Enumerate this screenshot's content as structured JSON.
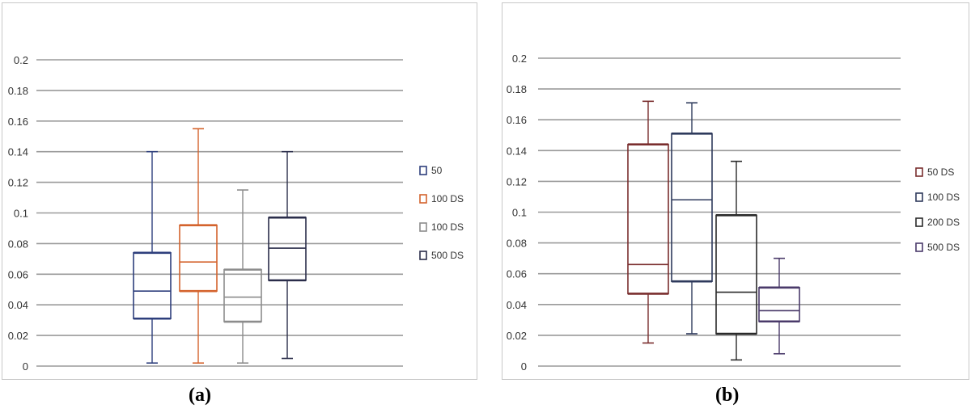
{
  "figure": {
    "panels": [
      {
        "caption": "(a)"
      },
      {
        "caption": "(b)"
      }
    ]
  },
  "chart_data": [
    {
      "type": "box",
      "title": "",
      "xlabel": "",
      "ylabel": "",
      "ylim": [
        0,
        0.2
      ],
      "y_ticks": [
        "0",
        "0.02",
        "0.04",
        "0.06",
        "0.08",
        "0.1",
        "0.12",
        "0.14",
        "0.16",
        "0.18",
        "0.2"
      ],
      "grid": true,
      "legend": "right",
      "series": [
        {
          "name": "50",
          "color": "#2e3f7c",
          "min": 0.002,
          "q1": 0.031,
          "median": 0.049,
          "q3": 0.074,
          "max": 0.14
        },
        {
          "name": "100 DS",
          "color": "#d4632d",
          "min": 0.002,
          "q1": 0.049,
          "median": 0.068,
          "q3": 0.092,
          "max": 0.155
        },
        {
          "name": "100 DS",
          "color": "#8c8c8c",
          "min": 0.002,
          "q1": 0.029,
          "median": 0.045,
          "q3": 0.063,
          "max": 0.115
        },
        {
          "name": "500 DS",
          "color": "#2a2d4a",
          "min": 0.005,
          "q1": 0.056,
          "median": 0.077,
          "q3": 0.097,
          "max": 0.14
        }
      ]
    },
    {
      "type": "box",
      "title": "",
      "xlabel": "",
      "ylabel": "",
      "ylim": [
        0,
        0.2
      ],
      "y_ticks": [
        "0",
        "0.02",
        "0.04",
        "0.06",
        "0.08",
        "0.1",
        "0.12",
        "0.14",
        "0.16",
        "0.18",
        "0.2"
      ],
      "grid": true,
      "legend": "right",
      "series": [
        {
          "name": "50 DS",
          "color": "#7a2e2e",
          "min": 0.015,
          "q1": 0.047,
          "median": 0.066,
          "q3": 0.144,
          "max": 0.172
        },
        {
          "name": "100 DS",
          "color": "#2e3a5c",
          "min": 0.021,
          "q1": 0.055,
          "median": 0.108,
          "q3": 0.151,
          "max": 0.171
        },
        {
          "name": "200 DS",
          "color": "#2a2a2a",
          "min": 0.004,
          "q1": 0.021,
          "median": 0.048,
          "q3": 0.098,
          "max": 0.133
        },
        {
          "name": "500 DS",
          "color": "#4a3a6a",
          "min": 0.008,
          "q1": 0.029,
          "median": 0.036,
          "q3": 0.051,
          "max": 0.07
        }
      ]
    }
  ]
}
